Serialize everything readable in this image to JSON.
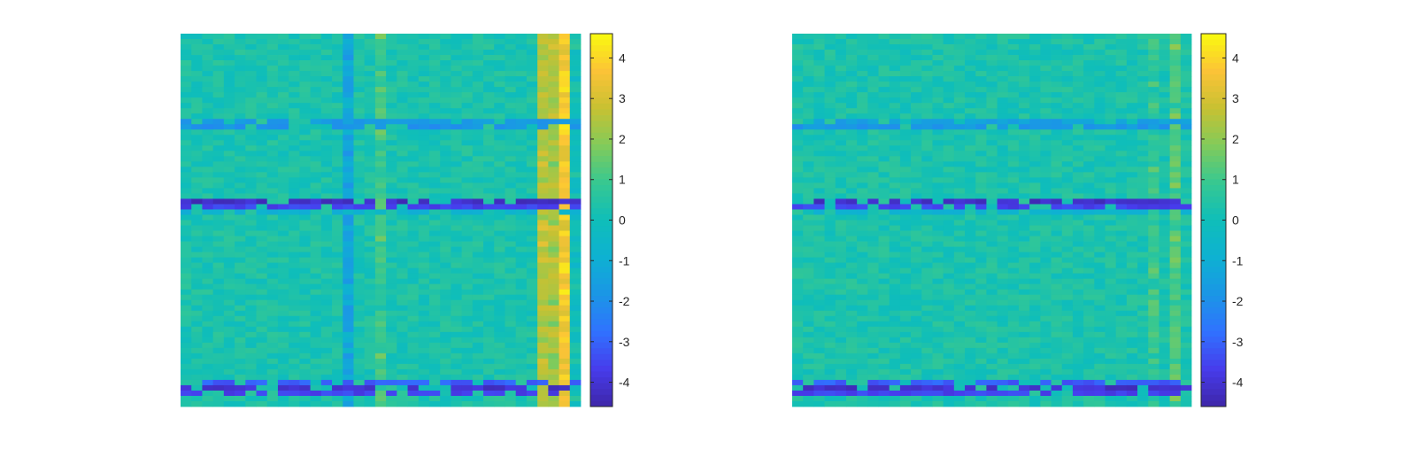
{
  "figure": {
    "background": "#ffffff"
  },
  "chart_data": [
    {
      "type": "heatmap",
      "name": "left panel",
      "rows": 70,
      "cols": 37,
      "clim": [
        -4.6,
        4.6
      ],
      "colormap": "parula",
      "base_value": 0.3,
      "noise_amplitude": 0.9,
      "column_offsets": [
        {
          "col": 15,
          "value": -1.6
        },
        {
          "col": 18,
          "value": 0.7
        },
        {
          "col": 33,
          "value": 2.3
        },
        {
          "col": 34,
          "value": 2.0
        },
        {
          "col": 35,
          "value": 3.3
        },
        {
          "col": 36,
          "value": -0.3
        }
      ],
      "row_overrides": [
        {
          "row": 16,
          "value": -1.7
        },
        {
          "row": 17,
          "value": -1.9
        },
        {
          "row": 31,
          "value": -4.2
        },
        {
          "row": 32,
          "value": -3.6
        },
        {
          "row": 33,
          "value": -0.8
        },
        {
          "row": 65,
          "value": -3.1
        },
        {
          "row": 66,
          "value": -4.1
        },
        {
          "row": 67,
          "value": -3.6
        }
      ],
      "colorbar": {
        "ticks": [
          4,
          3,
          2,
          1,
          0,
          -1,
          -2,
          -3,
          -4
        ],
        "tick_labels": [
          "4",
          "3",
          "2",
          "1",
          "0",
          "-1",
          "-2",
          "-3",
          "-4"
        ]
      }
    },
    {
      "type": "heatmap",
      "name": "right panel",
      "rows": 70,
      "cols": 37,
      "clim": [
        -4.6,
        4.6
      ],
      "colormap": "parula",
      "base_value": 0.3,
      "noise_amplitude": 0.9,
      "column_offsets": [
        {
          "col": 33,
          "value": 0.6
        },
        {
          "col": 35,
          "value": 0.9
        }
      ],
      "row_overrides": [
        {
          "row": 16,
          "value": -1.5
        },
        {
          "row": 17,
          "value": -1.8
        },
        {
          "row": 31,
          "value": -4.2
        },
        {
          "row": 32,
          "value": -3.6
        },
        {
          "row": 33,
          "value": -0.8
        },
        {
          "row": 65,
          "value": -3.1
        },
        {
          "row": 66,
          "value": -4.1
        },
        {
          "row": 67,
          "value": -3.6
        }
      ],
      "colorbar": {
        "ticks": [
          4,
          3,
          2,
          1,
          0,
          -1,
          -2,
          -3,
          -4
        ],
        "tick_labels": [
          "4",
          "3",
          "2",
          "1",
          "0",
          "-1",
          "-2",
          "-3",
          "-4"
        ]
      }
    }
  ]
}
